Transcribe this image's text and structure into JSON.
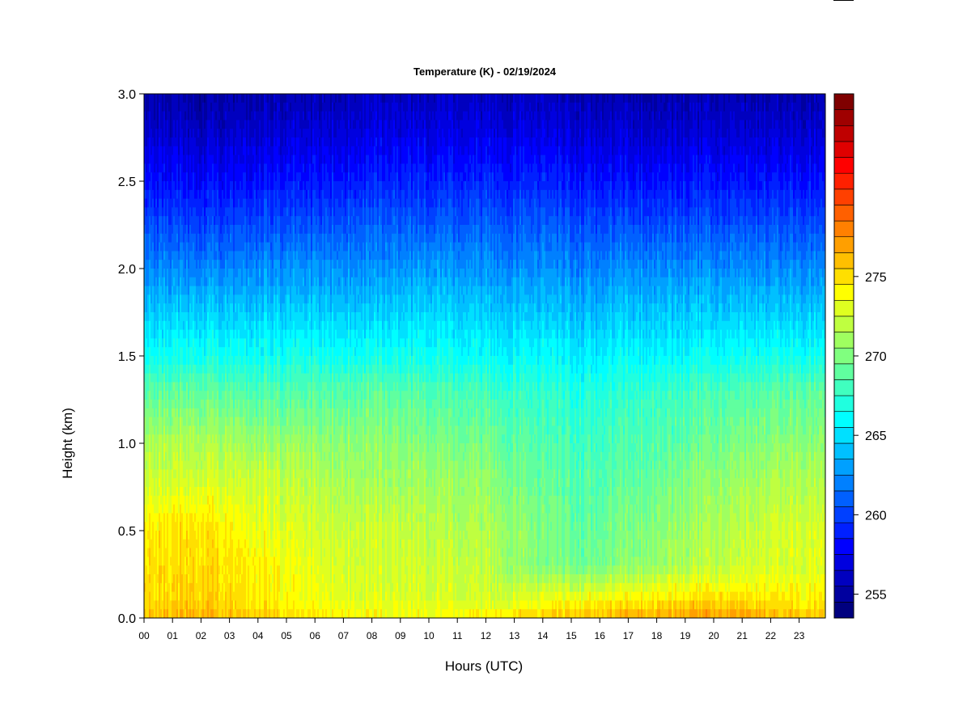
{
  "chart_data": {
    "type": "heatmap",
    "title": "Temperature (K) - 02/19/2024",
    "xlabel": "Hours (UTC)",
    "ylabel": "Height (km)",
    "x_tick_labels": [
      "00",
      "01",
      "02",
      "03",
      "04",
      "05",
      "06",
      "07",
      "08",
      "09",
      "10",
      "11",
      "12",
      "13",
      "14",
      "15",
      "16",
      "17",
      "18",
      "19",
      "20",
      "21",
      "22",
      "23"
    ],
    "y_tick_labels": [
      "0.0",
      "0.5",
      "1.0",
      "1.5",
      "2.0",
      "2.5",
      "3.0"
    ],
    "y_ticks": [
      0.0,
      0.5,
      1.0,
      1.5,
      2.0,
      2.5,
      3.0
    ],
    "xlim": [
      0,
      23.85
    ],
    "ylim": [
      0,
      3.0
    ],
    "colorbar": {
      "min": 254,
      "max": 279,
      "step": 1,
      "tick_values": [
        255,
        260,
        265,
        270,
        275
      ],
      "tick_labels": [
        "255",
        "260",
        "265",
        "270",
        "275"
      ],
      "colors": [
        "#00007f",
        "#00009f",
        "#0000bf",
        "#0000df",
        "#0000ff",
        "#0020ff",
        "#0040ff",
        "#0060ff",
        "#0080ff",
        "#00a0ff",
        "#00c0ff",
        "#00e0ff",
        "#00ffff",
        "#20ffdf",
        "#40ffbf",
        "#60ff9f",
        "#80ff7f",
        "#9fff60",
        "#bfff40",
        "#dfff20",
        "#ffff00",
        "#ffdf00",
        "#ffbf00",
        "#ff9f00",
        "#ff8000",
        "#ff6000",
        "#ff4000",
        "#ff2000",
        "#ff0000",
        "#df0000",
        "#bf0000",
        "#9f0000",
        "#7f0000"
      ]
    },
    "profile_heights_km": [
      0.0,
      0.1,
      0.3,
      0.5,
      0.8,
      1.0,
      1.3,
      1.5,
      1.8,
      2.0,
      2.3,
      2.5,
      2.8,
      3.0
    ],
    "profiles": [
      {
        "hour": 0,
        "temps_K": [
          276.5,
          275.5,
          275.5,
          275.0,
          273.0,
          272.0,
          269.5,
          267.0,
          264.5,
          263.0,
          260.5,
          259.0,
          257.0,
          256.0
        ]
      },
      {
        "hour": 2,
        "temps_K": [
          277.0,
          276.0,
          275.5,
          275.5,
          273.0,
          272.0,
          269.5,
          267.0,
          264.5,
          262.5,
          260.0,
          258.5,
          256.5,
          255.5
        ]
      },
      {
        "hour": 4,
        "temps_K": [
          276.0,
          275.0,
          275.0,
          274.0,
          273.0,
          271.5,
          269.0,
          267.0,
          264.5,
          263.0,
          260.5,
          259.0,
          257.0,
          256.0
        ]
      },
      {
        "hour": 6,
        "temps_K": [
          275.0,
          274.0,
          273.5,
          273.0,
          272.0,
          271.0,
          269.0,
          267.0,
          264.5,
          263.0,
          260.5,
          259.0,
          257.0,
          256.0
        ]
      },
      {
        "hour": 8,
        "temps_K": [
          274.5,
          273.5,
          273.0,
          273.0,
          271.5,
          271.0,
          269.5,
          267.0,
          264.5,
          263.0,
          261.0,
          259.5,
          257.5,
          256.5
        ]
      },
      {
        "hour": 10,
        "temps_K": [
          274.5,
          273.5,
          273.0,
          272.5,
          271.5,
          270.5,
          269.0,
          267.0,
          265.0,
          263.5,
          261.0,
          259.5,
          257.5,
          256.5
        ]
      },
      {
        "hour": 12,
        "temps_K": [
          275.0,
          273.0,
          272.5,
          272.0,
          271.0,
          270.0,
          268.5,
          266.5,
          264.5,
          263.0,
          261.0,
          259.5,
          257.5,
          256.5
        ]
      },
      {
        "hour": 14,
        "temps_K": [
          276.0,
          274.0,
          270.5,
          270.5,
          269.5,
          269.0,
          268.0,
          266.5,
          264.5,
          263.0,
          261.0,
          259.5,
          257.5,
          256.5
        ]
      },
      {
        "hour": 15.5,
        "temps_K": [
          276.5,
          274.5,
          270.0,
          269.5,
          269.0,
          268.5,
          267.5,
          266.0,
          264.0,
          262.5,
          260.5,
          259.0,
          257.0,
          256.0
        ]
      },
      {
        "hour": 17,
        "temps_K": [
          277.0,
          275.0,
          271.0,
          270.5,
          269.5,
          269.0,
          268.0,
          266.5,
          264.5,
          263.0,
          260.5,
          259.0,
          257.0,
          256.0
        ]
      },
      {
        "hour": 19,
        "temps_K": [
          277.5,
          275.5,
          272.0,
          271.5,
          270.5,
          269.5,
          268.5,
          266.5,
          264.5,
          263.0,
          260.5,
          259.0,
          257.0,
          256.0
        ]
      },
      {
        "hour": 21,
        "temps_K": [
          277.5,
          275.5,
          273.0,
          272.5,
          271.5,
          270.5,
          269.0,
          267.0,
          264.5,
          263.0,
          260.5,
          259.0,
          257.0,
          256.0
        ]
      },
      {
        "hour": 23,
        "temps_K": [
          276.5,
          275.0,
          273.5,
          273.5,
          272.0,
          271.0,
          269.5,
          267.0,
          264.5,
          263.0,
          260.5,
          259.0,
          257.0,
          256.0
        ]
      }
    ],
    "grid": false,
    "legend": "colorbar-right"
  }
}
